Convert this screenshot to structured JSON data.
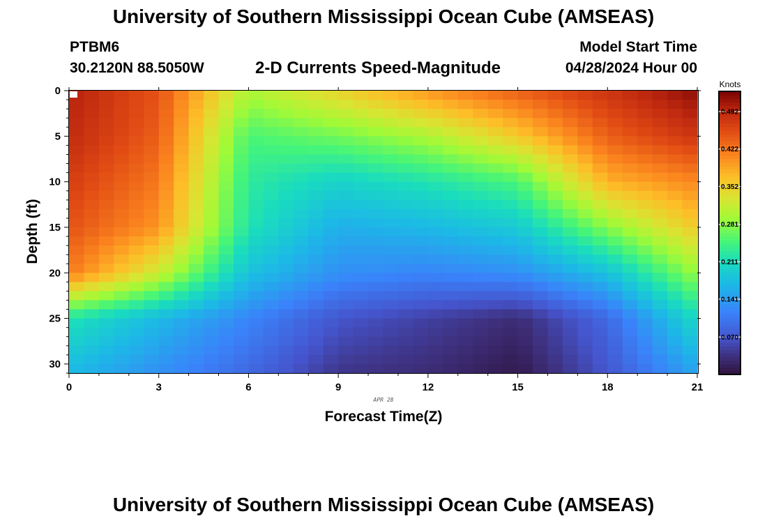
{
  "header": {
    "title": "University of Southern Mississippi Ocean Cube (AMSEAS)",
    "station_id": "PTBM6",
    "station_coords": "30.2120N  88.5050W",
    "chart_title": "2-D Currents Speed-Magnitude",
    "model_start_label": "Model Start Time",
    "model_start_value": "04/28/2024 Hour 00"
  },
  "footer": {
    "title": "University of Southern Mississippi Ocean Cube (AMSEAS)"
  },
  "chart_data": {
    "type": "heatmap",
    "title": "2-D Currents Speed-Magnitude",
    "xlabel": "Forecast Time(Z)",
    "ylabel": "Depth (ft)",
    "x_date_label": "APR 28",
    "xlim": [
      0,
      21
    ],
    "ylim": [
      31,
      0
    ],
    "x_ticks": [
      0,
      3,
      6,
      9,
      12,
      15,
      18,
      21
    ],
    "y_ticks": [
      0,
      5,
      10,
      15,
      20,
      25,
      30
    ],
    "x_tick_labels": [
      "0",
      "3",
      "6",
      "9",
      "12",
      "15",
      "18",
      "21"
    ],
    "y_tick_labels": [
      "0",
      "5",
      "10",
      "15",
      "20",
      "25",
      "30"
    ],
    "colorbar": {
      "unit": "Knots",
      "vmin": 0.0,
      "vmax": 0.53,
      "ticks": [
        0.07,
        0.141,
        0.211,
        0.281,
        0.352,
        0.422,
        0.492
      ],
      "tick_labels": [
        "0.070",
        "0.141",
        "0.211",
        "0.281",
        "0.352",
        "0.422",
        "0.492"
      ]
    },
    "grid": {
      "x_hours": [
        0,
        3,
        6,
        9,
        12,
        15,
        18,
        21
      ],
      "depth_ft": [
        0,
        5,
        10,
        15,
        20,
        25,
        31
      ],
      "speed_knots": [
        [
          0.5,
          0.45,
          0.3,
          0.35,
          0.4,
          0.44,
          0.48,
          0.52
        ],
        [
          0.49,
          0.44,
          0.25,
          0.27,
          0.3,
          0.36,
          0.44,
          0.48
        ],
        [
          0.47,
          0.42,
          0.23,
          0.2,
          0.22,
          0.25,
          0.38,
          0.41
        ],
        [
          0.45,
          0.4,
          0.22,
          0.16,
          0.17,
          0.19,
          0.28,
          0.36
        ],
        [
          0.42,
          0.32,
          0.18,
          0.13,
          0.12,
          0.13,
          0.18,
          0.29
        ],
        [
          0.22,
          0.17,
          0.12,
          0.07,
          0.05,
          0.03,
          0.09,
          0.21
        ],
        [
          0.17,
          0.13,
          0.09,
          0.04,
          0.03,
          0.01,
          0.07,
          0.15
        ]
      ]
    }
  }
}
